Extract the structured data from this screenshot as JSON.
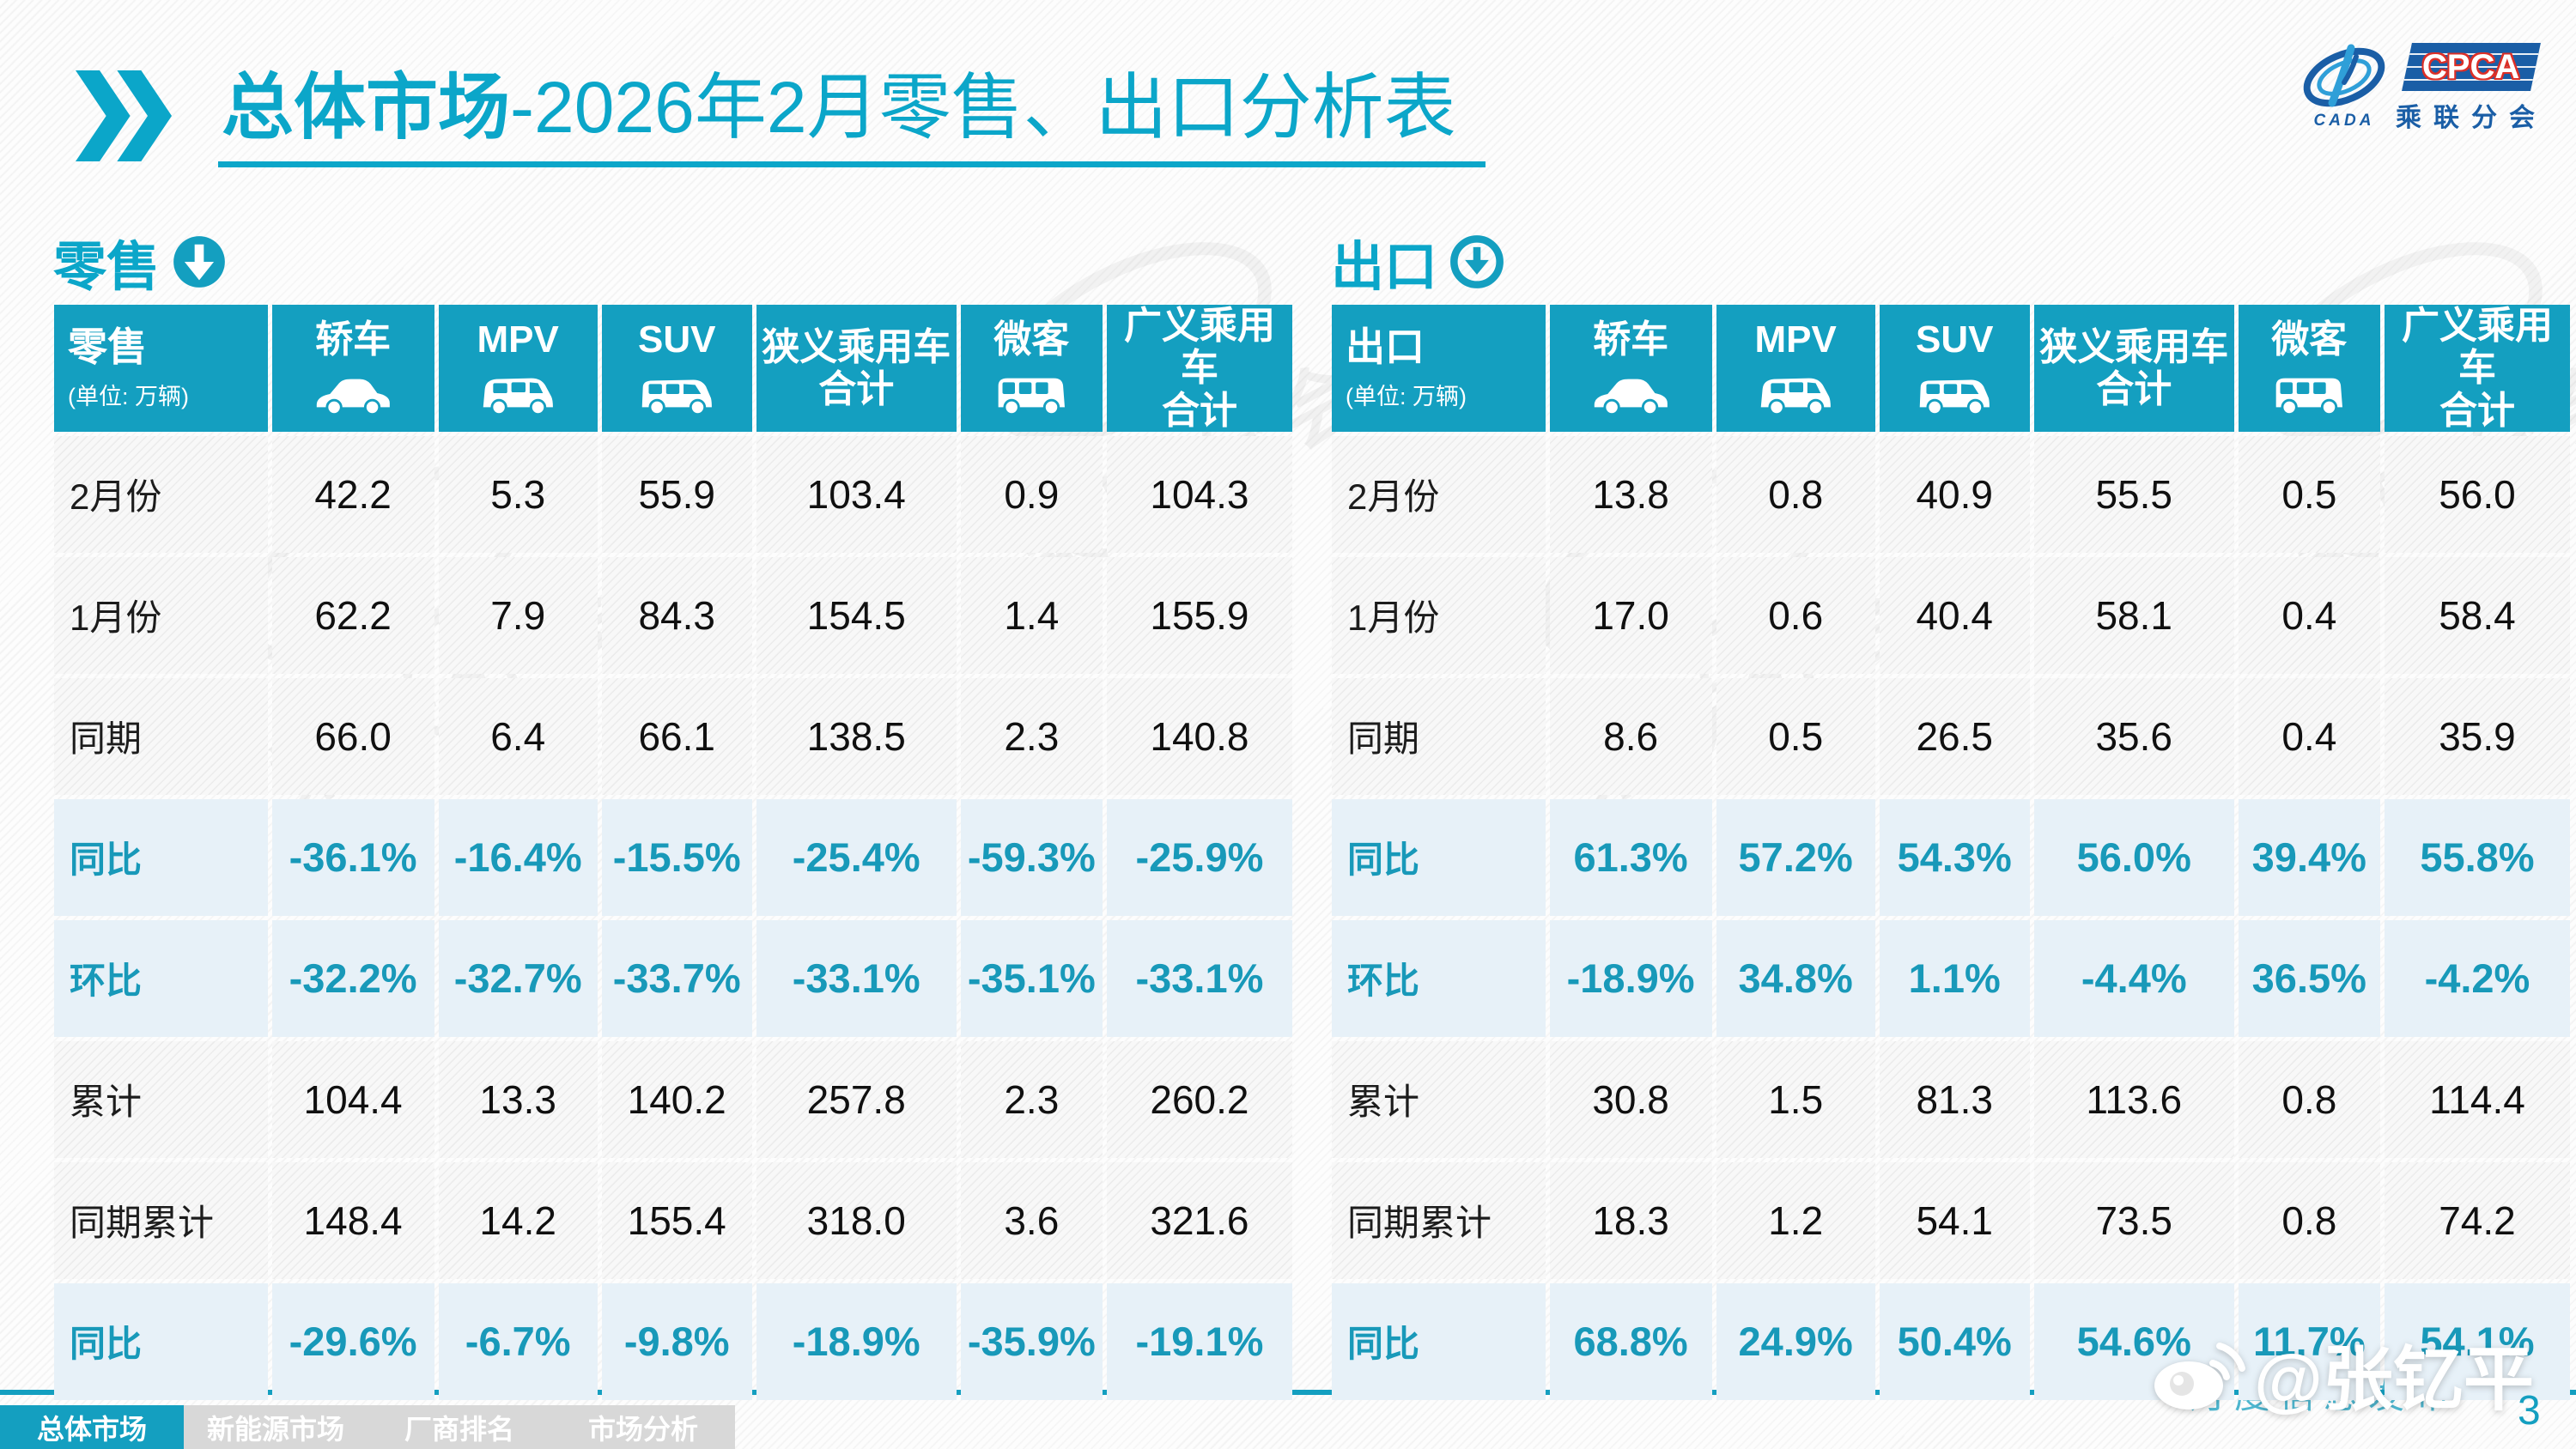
{
  "page": {
    "title_bold": "总体市场",
    "title_rest": "-2026年2月零售、出口分析表",
    "page_number": "3"
  },
  "logo": {
    "cpca": "CPCA",
    "cada": "CADA",
    "subtitle": "乘联分会"
  },
  "colors": {
    "accent_teal": "#149fc0",
    "title_teal": "#0ba6c9",
    "percent_row_bg": "#e7f1f8",
    "percent_text": "#1899b9",
    "nav_inactive_bg": "#d8d8d8",
    "logo_blue": "#1a5ea6",
    "logo_red": "#dc2f27"
  },
  "watermark": {
    "text": "乘联分会"
  },
  "footer": {
    "teal_watermark": "月度信息发布",
    "weibo_handle": "@张钇平"
  },
  "nav": {
    "tabs": [
      {
        "label": "总体市场",
        "name": "overall-market",
        "active": true
      },
      {
        "label": "新能源市场",
        "name": "nev-market",
        "active": false
      },
      {
        "label": "厂商排名",
        "name": "oem-ranking",
        "active": false
      },
      {
        "label": "市场分析",
        "name": "market-analysis",
        "active": false
      }
    ]
  },
  "tables": [
    {
      "id": "retail",
      "section_label": "零售",
      "arrow_style": "filled",
      "header": {
        "label": "零售",
        "unit": "(单位: 万辆)",
        "columns": [
          {
            "label": "轿车",
            "icon": "sedan-icon"
          },
          {
            "label": "MPV",
            "icon": "mpv-icon"
          },
          {
            "label": "SUV",
            "icon": "suv-icon"
          },
          {
            "label": "狭义乘用车",
            "sub": "合计"
          },
          {
            "label": "微客",
            "icon": "microvan-icon"
          },
          {
            "label": "广义乘用车",
            "sub": "合计"
          }
        ]
      },
      "rows": [
        {
          "label": "2月份",
          "type": "normal",
          "values": [
            "42.2",
            "5.3",
            "55.9",
            "103.4",
            "0.9",
            "104.3"
          ]
        },
        {
          "label": "1月份",
          "type": "normal",
          "values": [
            "62.2",
            "7.9",
            "84.3",
            "154.5",
            "1.4",
            "155.9"
          ]
        },
        {
          "label": "同期",
          "type": "normal",
          "values": [
            "66.0",
            "6.4",
            "66.1",
            "138.5",
            "2.3",
            "140.8"
          ]
        },
        {
          "label": "同比",
          "type": "percent",
          "values": [
            "-36.1%",
            "-16.4%",
            "-15.5%",
            "-25.4%",
            "-59.3%",
            "-25.9%"
          ]
        },
        {
          "label": "环比",
          "type": "percent",
          "values": [
            "-32.2%",
            "-32.7%",
            "-33.7%",
            "-33.1%",
            "-35.1%",
            "-33.1%"
          ]
        },
        {
          "label": "累计",
          "type": "normal",
          "values": [
            "104.4",
            "13.3",
            "140.2",
            "257.8",
            "2.3",
            "260.2"
          ]
        },
        {
          "label": "同期累计",
          "type": "normal",
          "values": [
            "148.4",
            "14.2",
            "155.4",
            "318.0",
            "3.6",
            "321.6"
          ]
        },
        {
          "label": "同比",
          "type": "percent",
          "values": [
            "-29.6%",
            "-6.7%",
            "-9.8%",
            "-18.9%",
            "-35.9%",
            "-19.1%"
          ]
        }
      ]
    },
    {
      "id": "export",
      "section_label": "出口",
      "arrow_style": "ring",
      "header": {
        "label": "出口",
        "unit": "(单位: 万辆)",
        "columns": [
          {
            "label": "轿车",
            "icon": "sedan-icon"
          },
          {
            "label": "MPV",
            "icon": "mpv-icon"
          },
          {
            "label": "SUV",
            "icon": "suv-icon"
          },
          {
            "label": "狭义乘用车",
            "sub": "合计"
          },
          {
            "label": "微客",
            "icon": "microvan-icon"
          },
          {
            "label": "广义乘用车",
            "sub": "合计"
          }
        ]
      },
      "rows": [
        {
          "label": "2月份",
          "type": "normal",
          "values": [
            "13.8",
            "0.8",
            "40.9",
            "55.5",
            "0.5",
            "56.0"
          ]
        },
        {
          "label": "1月份",
          "type": "normal",
          "values": [
            "17.0",
            "0.6",
            "40.4",
            "58.1",
            "0.4",
            "58.4"
          ]
        },
        {
          "label": "同期",
          "type": "normal",
          "values": [
            "8.6",
            "0.5",
            "26.5",
            "35.6",
            "0.4",
            "35.9"
          ]
        },
        {
          "label": "同比",
          "type": "percent",
          "values": [
            "61.3%",
            "57.2%",
            "54.3%",
            "56.0%",
            "39.4%",
            "55.8%"
          ]
        },
        {
          "label": "环比",
          "type": "percent",
          "values": [
            "-18.9%",
            "34.8%",
            "1.1%",
            "-4.4%",
            "36.5%",
            "-4.2%"
          ]
        },
        {
          "label": "累计",
          "type": "normal",
          "values": [
            "30.8",
            "1.5",
            "81.3",
            "113.6",
            "0.8",
            "114.4"
          ]
        },
        {
          "label": "同期累计",
          "type": "normal",
          "values": [
            "18.3",
            "1.2",
            "54.1",
            "73.5",
            "0.8",
            "74.2"
          ]
        },
        {
          "label": "同比",
          "type": "percent",
          "values": [
            "68.8%",
            "24.9%",
            "50.4%",
            "54.6%",
            "11.7%",
            "54.1%"
          ]
        }
      ]
    }
  ]
}
